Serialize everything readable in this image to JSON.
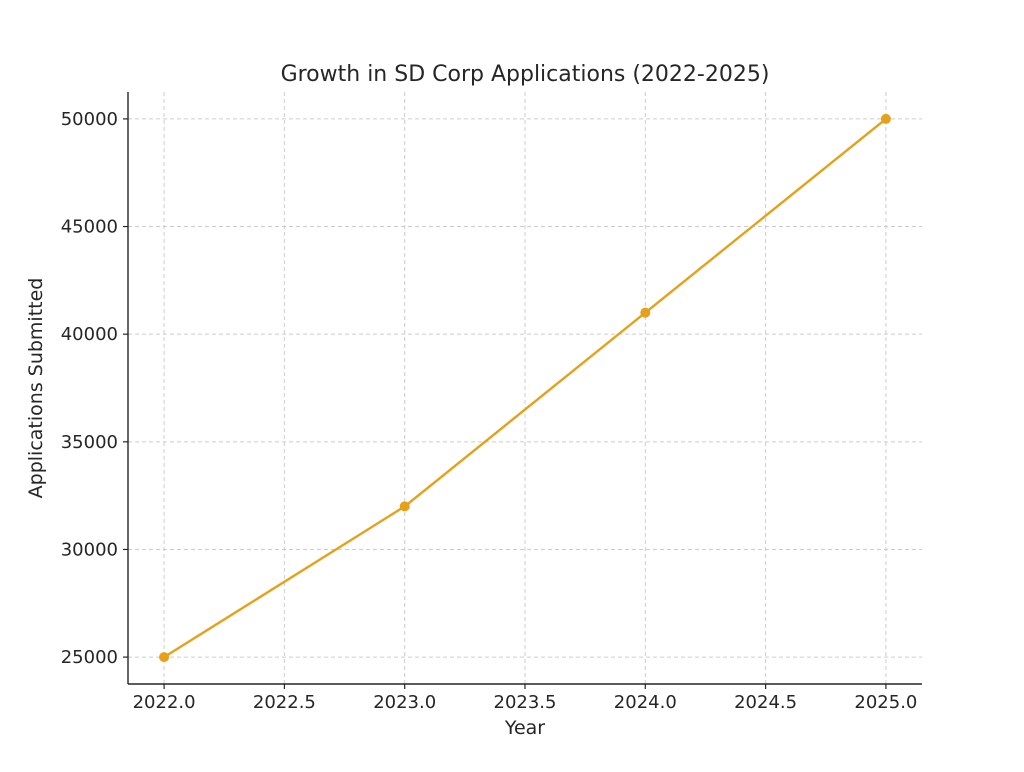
{
  "chart_data": {
    "type": "line",
    "title": "Growth in SD Corp Applications (2022-2025)",
    "xlabel": "Year",
    "ylabel": "Applications Submitted",
    "x": [
      2022,
      2023,
      2024,
      2025
    ],
    "series": [
      {
        "values": [
          25000,
          32000,
          41000,
          50000
        ],
        "color": "#e5a11a",
        "marker": "circle"
      }
    ],
    "xticks": [
      2022.0,
      2022.5,
      2023.0,
      2023.5,
      2024.0,
      2024.5,
      2025.0
    ],
    "xtick_labels": [
      "2022.0",
      "2022.5",
      "2023.0",
      "2023.5",
      "2024.0",
      "2024.5",
      "2025.0"
    ],
    "yticks": [
      25000,
      30000,
      35000,
      40000,
      45000,
      50000
    ],
    "ytick_labels": [
      "25000",
      "30000",
      "35000",
      "40000",
      "45000",
      "50000"
    ],
    "xlim": [
      2021.85,
      2025.15
    ],
    "ylim": [
      23750,
      51250
    ],
    "grid": true
  }
}
